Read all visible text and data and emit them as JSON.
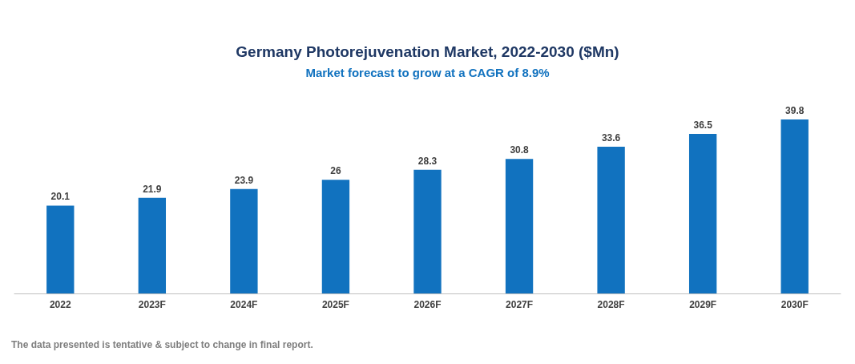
{
  "chart_data": {
    "type": "bar",
    "title": "Germany Photorejuvenation Market, 2022-2030 ($Mn)",
    "subtitle": "Market forecast to grow at a CAGR of 8.9%",
    "categories": [
      "2022",
      "2023F",
      "2024F",
      "2025F",
      "2026F",
      "2027F",
      "2028F",
      "2029F",
      "2030F"
    ],
    "values": [
      20.1,
      21.9,
      23.9,
      26,
      28.3,
      30.8,
      33.6,
      36.5,
      39.8
    ],
    "color": "#1172bf",
    "data_labels": true,
    "tick_labels": "x",
    "grid": false,
    "annotations": [
      "The data presented is tentative & subject to change in final report."
    ]
  }
}
